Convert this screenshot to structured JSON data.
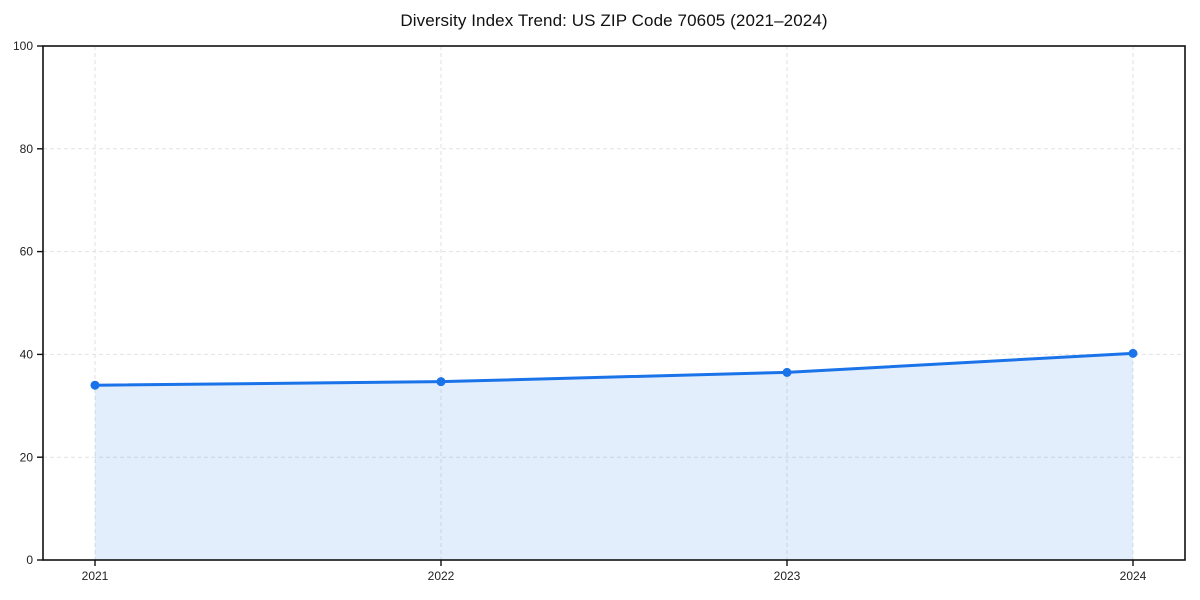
{
  "page": {
    "background": "#ffffff"
  },
  "chart_data": {
    "type": "area",
    "title": "Diversity Index Trend: US ZIP Code 70605 (2021–2024)",
    "categories": [
      "2021",
      "2022",
      "2023",
      "2024"
    ],
    "series": [
      {
        "name": "Diversity Index",
        "values": [
          34.0,
          34.7,
          36.5,
          40.2
        ]
      }
    ],
    "xlabel": "",
    "ylabel": "",
    "ylim": [
      0,
      100
    ],
    "yticks": [
      0,
      20,
      40,
      60,
      80,
      100
    ],
    "grid": "dashed",
    "legend": "none",
    "line_color": "#1a73e8",
    "marker_color": "#1a73e8",
    "fill_color": "#1a73e8",
    "fill_opacity": 0.12,
    "gridline_color": "#e2e2e2",
    "spine_color": "#111111",
    "tick_label_color": "#222222",
    "title_color": "#111111"
  }
}
